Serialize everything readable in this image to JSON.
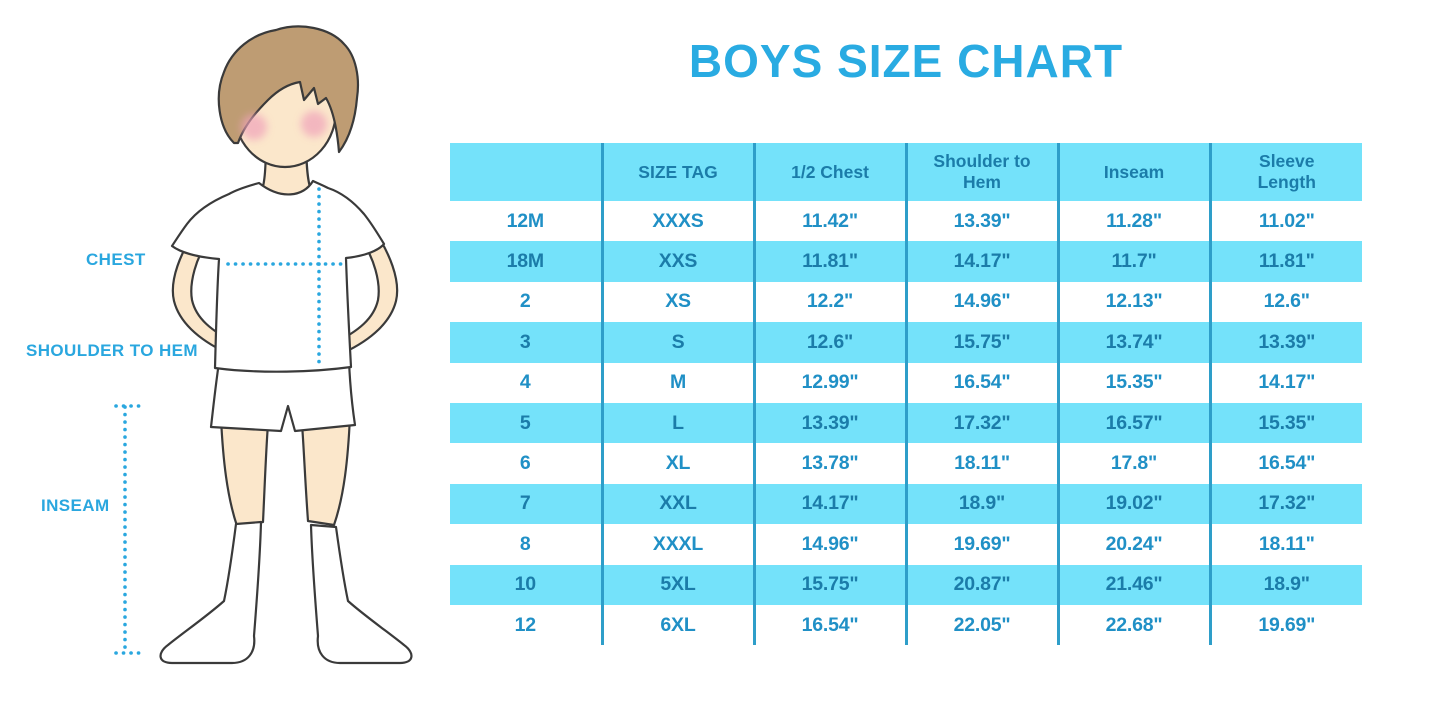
{
  "title": "BOYS SIZE CHART",
  "illustration": {
    "chest_label": "CHEST",
    "shoulder_to_hem_label": "SHOULDER TO HEM",
    "inseam_label": "INSEAM"
  },
  "colors": {
    "accent": "#2AA7DF",
    "title_text": "#29ABE2",
    "stripe": "#74E2FA",
    "divider": "#2E9EC9",
    "text_on_white": "#2090C6",
    "text_on_stripe": "#1B7CA9",
    "skin": "#FBE7CB",
    "hair": "#BE9C73",
    "outline": "#3A3A3A",
    "blush": "#F0A3BA"
  },
  "chart_data": {
    "type": "table",
    "title": "BOYS SIZE CHART",
    "columns": [
      "",
      "SIZE TAG",
      "1/2 Chest",
      "Shoulder to Hem",
      "Inseam",
      "Sleeve Length"
    ],
    "rows": [
      [
        "12M",
        "XXXS",
        "11.42\"",
        "13.39\"",
        "11.28\"",
        "11.02\""
      ],
      [
        "18M",
        "XXS",
        "11.81\"",
        "14.17\"",
        "11.7\"",
        "11.81\""
      ],
      [
        "2",
        "XS",
        "12.2\"",
        "14.96\"",
        "12.13\"",
        "12.6\""
      ],
      [
        "3",
        "S",
        "12.6\"",
        "15.75\"",
        "13.74\"",
        "13.39\""
      ],
      [
        "4",
        "M",
        "12.99\"",
        "16.54\"",
        "15.35\"",
        "14.17\""
      ],
      [
        "5",
        "L",
        "13.39\"",
        "17.32\"",
        "16.57\"",
        "15.35\""
      ],
      [
        "6",
        "XL",
        "13.78\"",
        "18.11\"",
        "17.8\"",
        "16.54\""
      ],
      [
        "7",
        "XXL",
        "14.17\"",
        "18.9\"",
        "19.02\"",
        "17.32\""
      ],
      [
        "8",
        "XXXL",
        "14.96\"",
        "19.69\"",
        "20.24\"",
        "18.11\""
      ],
      [
        "10",
        "5XL",
        "15.75\"",
        "20.87\"",
        "21.46\"",
        "18.9\""
      ],
      [
        "12",
        "6XL",
        "16.54\"",
        "22.05\"",
        "22.68\"",
        "19.69\""
      ]
    ]
  }
}
